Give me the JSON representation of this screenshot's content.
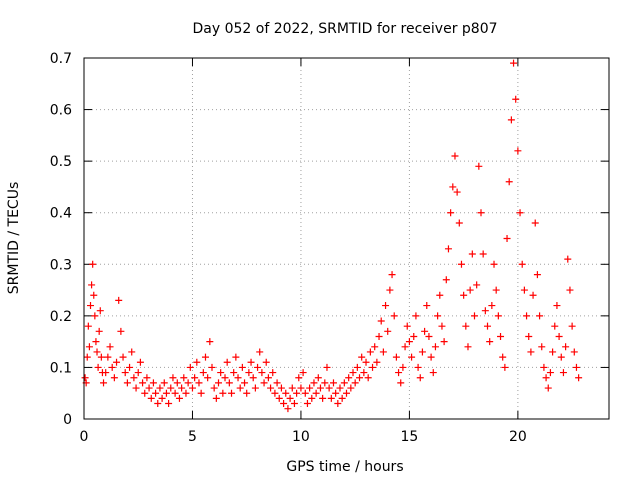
{
  "chart_data": {
    "type": "scatter",
    "title": "Day 052 of 2022, SRMTID for receiver p807",
    "xlabel": "GPS time / hours",
    "ylabel": "SRMTID / TECUs",
    "xlim": [
      0,
      24.2
    ],
    "ylim": [
      0,
      0.7
    ],
    "xticks": [
      0,
      5,
      10,
      15,
      20
    ],
    "yticks": [
      0,
      0.1,
      0.2,
      0.3,
      0.4,
      0.5,
      0.6,
      0.7
    ],
    "grid": true,
    "marker": "+",
    "series": [
      {
        "name": "p807",
        "color": "#ff0000",
        "points": [
          [
            0.05,
            0.08
          ],
          [
            0.1,
            0.07
          ],
          [
            0.15,
            0.12
          ],
          [
            0.2,
            0.18
          ],
          [
            0.25,
            0.14
          ],
          [
            0.3,
            0.22
          ],
          [
            0.35,
            0.26
          ],
          [
            0.4,
            0.3
          ],
          [
            0.45,
            0.24
          ],
          [
            0.5,
            0.2
          ],
          [
            0.55,
            0.15
          ],
          [
            0.6,
            0.13
          ],
          [
            0.65,
            0.1
          ],
          [
            0.7,
            0.17
          ],
          [
            0.75,
            0.21
          ],
          [
            0.8,
            0.12
          ],
          [
            0.85,
            0.09
          ],
          [
            0.9,
            0.07
          ],
          [
            1.0,
            0.09
          ],
          [
            1.1,
            0.12
          ],
          [
            1.2,
            0.14
          ],
          [
            1.3,
            0.1
          ],
          [
            1.4,
            0.08
          ],
          [
            1.5,
            0.11
          ],
          [
            1.6,
            0.23
          ],
          [
            1.7,
            0.17
          ],
          [
            1.8,
            0.12
          ],
          [
            1.9,
            0.09
          ],
          [
            2.0,
            0.07
          ],
          [
            2.1,
            0.1
          ],
          [
            2.2,
            0.13
          ],
          [
            2.3,
            0.08
          ],
          [
            2.4,
            0.06
          ],
          [
            2.5,
            0.09
          ],
          [
            2.6,
            0.11
          ],
          [
            2.7,
            0.07
          ],
          [
            2.8,
            0.05
          ],
          [
            2.9,
            0.08
          ],
          [
            3.0,
            0.06
          ],
          [
            3.1,
            0.04
          ],
          [
            3.2,
            0.07
          ],
          [
            3.3,
            0.05
          ],
          [
            3.4,
            0.03
          ],
          [
            3.5,
            0.06
          ],
          [
            3.6,
            0.04
          ],
          [
            3.7,
            0.07
          ],
          [
            3.8,
            0.05
          ],
          [
            3.9,
            0.03
          ],
          [
            4.0,
            0.06
          ],
          [
            4.1,
            0.08
          ],
          [
            4.2,
            0.05
          ],
          [
            4.3,
            0.07
          ],
          [
            4.4,
            0.04
          ],
          [
            4.5,
            0.06
          ],
          [
            4.6,
            0.08
          ],
          [
            4.7,
            0.05
          ],
          [
            4.8,
            0.07
          ],
          [
            4.9,
            0.1
          ],
          [
            5.0,
            0.06
          ],
          [
            5.1,
            0.08
          ],
          [
            5.2,
            0.11
          ],
          [
            5.3,
            0.07
          ],
          [
            5.4,
            0.05
          ],
          [
            5.5,
            0.09
          ],
          [
            5.6,
            0.12
          ],
          [
            5.7,
            0.08
          ],
          [
            5.8,
            0.15
          ],
          [
            5.9,
            0.1
          ],
          [
            6.0,
            0.06
          ],
          [
            6.1,
            0.04
          ],
          [
            6.2,
            0.07
          ],
          [
            6.3,
            0.09
          ],
          [
            6.4,
            0.05
          ],
          [
            6.5,
            0.08
          ],
          [
            6.6,
            0.11
          ],
          [
            6.7,
            0.07
          ],
          [
            6.8,
            0.05
          ],
          [
            6.9,
            0.09
          ],
          [
            7.0,
            0.12
          ],
          [
            7.1,
            0.08
          ],
          [
            7.2,
            0.06
          ],
          [
            7.3,
            0.1
          ],
          [
            7.4,
            0.07
          ],
          [
            7.5,
            0.05
          ],
          [
            7.6,
            0.09
          ],
          [
            7.7,
            0.11
          ],
          [
            7.8,
            0.08
          ],
          [
            7.9,
            0.06
          ],
          [
            8.0,
            0.1
          ],
          [
            8.1,
            0.13
          ],
          [
            8.2,
            0.09
          ],
          [
            8.3,
            0.07
          ],
          [
            8.4,
            0.11
          ],
          [
            8.5,
            0.08
          ],
          [
            8.6,
            0.06
          ],
          [
            8.7,
            0.09
          ],
          [
            8.8,
            0.05
          ],
          [
            8.9,
            0.07
          ],
          [
            9.0,
            0.04
          ],
          [
            9.1,
            0.06
          ],
          [
            9.2,
            0.03
          ],
          [
            9.3,
            0.05
          ],
          [
            9.4,
            0.02
          ],
          [
            9.5,
            0.04
          ],
          [
            9.6,
            0.06
          ],
          [
            9.7,
            0.03
          ],
          [
            9.8,
            0.05
          ],
          [
            9.9,
            0.08
          ],
          [
            10.0,
            0.06
          ],
          [
            10.1,
            0.09
          ],
          [
            10.2,
            0.05
          ],
          [
            10.3,
            0.03
          ],
          [
            10.4,
            0.06
          ],
          [
            10.5,
            0.04
          ],
          [
            10.6,
            0.07
          ],
          [
            10.7,
            0.05
          ],
          [
            10.8,
            0.08
          ],
          [
            10.9,
            0.06
          ],
          [
            11.0,
            0.04
          ],
          [
            11.1,
            0.07
          ],
          [
            11.2,
            0.1
          ],
          [
            11.3,
            0.06
          ],
          [
            11.4,
            0.04
          ],
          [
            11.5,
            0.07
          ],
          [
            11.6,
            0.05
          ],
          [
            11.7,
            0.03
          ],
          [
            11.8,
            0.06
          ],
          [
            11.9,
            0.04
          ],
          [
            12.0,
            0.07
          ],
          [
            12.1,
            0.05
          ],
          [
            12.2,
            0.08
          ],
          [
            12.3,
            0.06
          ],
          [
            12.4,
            0.09
          ],
          [
            12.5,
            0.07
          ],
          [
            12.6,
            0.1
          ],
          [
            12.7,
            0.08
          ],
          [
            12.8,
            0.12
          ],
          [
            12.9,
            0.09
          ],
          [
            13.0,
            0.11
          ],
          [
            13.1,
            0.08
          ],
          [
            13.2,
            0.13
          ],
          [
            13.3,
            0.1
          ],
          [
            13.4,
            0.14
          ],
          [
            13.5,
            0.11
          ],
          [
            13.6,
            0.16
          ],
          [
            13.7,
            0.19
          ],
          [
            13.8,
            0.13
          ],
          [
            13.9,
            0.22
          ],
          [
            14.0,
            0.17
          ],
          [
            14.1,
            0.25
          ],
          [
            14.2,
            0.28
          ],
          [
            14.3,
            0.2
          ],
          [
            14.4,
            0.12
          ],
          [
            14.5,
            0.09
          ],
          [
            14.6,
            0.07
          ],
          [
            14.7,
            0.1
          ],
          [
            14.8,
            0.14
          ],
          [
            14.9,
            0.18
          ],
          [
            15.0,
            0.15
          ],
          [
            15.1,
            0.12
          ],
          [
            15.2,
            0.16
          ],
          [
            15.3,
            0.2
          ],
          [
            15.4,
            0.1
          ],
          [
            15.5,
            0.08
          ],
          [
            15.6,
            0.13
          ],
          [
            15.7,
            0.17
          ],
          [
            15.8,
            0.22
          ],
          [
            15.9,
            0.16
          ],
          [
            16.0,
            0.12
          ],
          [
            16.1,
            0.09
          ],
          [
            16.2,
            0.14
          ],
          [
            16.3,
            0.2
          ],
          [
            16.4,
            0.24
          ],
          [
            16.5,
            0.18
          ],
          [
            16.6,
            0.15
          ],
          [
            16.7,
            0.27
          ],
          [
            16.8,
            0.33
          ],
          [
            16.9,
            0.4
          ],
          [
            17.0,
            0.45
          ],
          [
            17.1,
            0.51
          ],
          [
            17.2,
            0.44
          ],
          [
            17.3,
            0.38
          ],
          [
            17.4,
            0.3
          ],
          [
            17.5,
            0.24
          ],
          [
            17.6,
            0.18
          ],
          [
            17.7,
            0.14
          ],
          [
            17.8,
            0.25
          ],
          [
            17.9,
            0.32
          ],
          [
            18.0,
            0.2
          ],
          [
            18.1,
            0.26
          ],
          [
            18.2,
            0.49
          ],
          [
            18.3,
            0.4
          ],
          [
            18.4,
            0.32
          ],
          [
            18.5,
            0.21
          ],
          [
            18.6,
            0.18
          ],
          [
            18.7,
            0.15
          ],
          [
            18.8,
            0.22
          ],
          [
            18.9,
            0.3
          ],
          [
            19.0,
            0.25
          ],
          [
            19.1,
            0.2
          ],
          [
            19.2,
            0.16
          ],
          [
            19.3,
            0.12
          ],
          [
            19.4,
            0.1
          ],
          [
            19.5,
            0.35
          ],
          [
            19.6,
            0.46
          ],
          [
            19.7,
            0.58
          ],
          [
            19.8,
            0.69
          ],
          [
            19.9,
            0.62
          ],
          [
            20.0,
            0.52
          ],
          [
            20.1,
            0.4
          ],
          [
            20.2,
            0.3
          ],
          [
            20.3,
            0.25
          ],
          [
            20.4,
            0.2
          ],
          [
            20.5,
            0.16
          ],
          [
            20.6,
            0.13
          ],
          [
            20.7,
            0.24
          ],
          [
            20.8,
            0.38
          ],
          [
            20.9,
            0.28
          ],
          [
            21.0,
            0.2
          ],
          [
            21.1,
            0.14
          ],
          [
            21.2,
            0.1
          ],
          [
            21.3,
            0.08
          ],
          [
            21.4,
            0.06
          ],
          [
            21.5,
            0.09
          ],
          [
            21.6,
            0.13
          ],
          [
            21.7,
            0.18
          ],
          [
            21.8,
            0.22
          ],
          [
            21.9,
            0.16
          ],
          [
            22.0,
            0.12
          ],
          [
            22.1,
            0.09
          ],
          [
            22.2,
            0.14
          ],
          [
            22.3,
            0.31
          ],
          [
            22.4,
            0.25
          ],
          [
            22.5,
            0.18
          ],
          [
            22.6,
            0.13
          ],
          [
            22.7,
            0.1
          ],
          [
            22.8,
            0.08
          ]
        ]
      }
    ]
  }
}
